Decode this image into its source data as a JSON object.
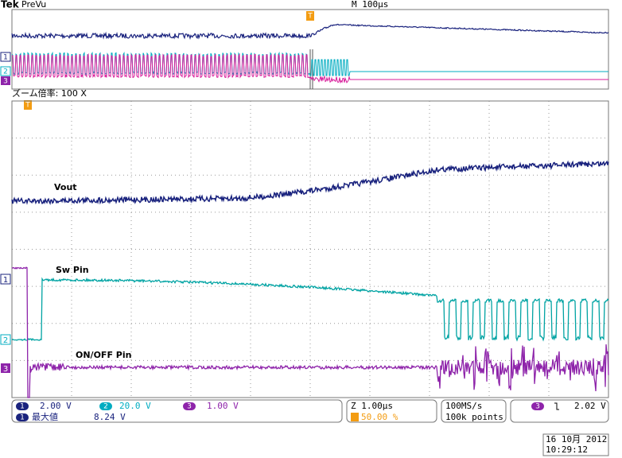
{
  "header": {
    "brand": "Tek",
    "mode": "PreVu",
    "timebase": "M 100µs",
    "trigger_mark": "T"
  },
  "zoom": {
    "label": "ズーム倍率: 100 X"
  },
  "channels": [
    {
      "marker": "1",
      "label": "Vout"
    },
    {
      "marker": "2",
      "label": "Sw Pin"
    },
    {
      "marker": "3",
      "label": "ON/OFF Pin"
    }
  ],
  "readout": {
    "ch1": "2.00 V",
    "ch2": "20.0 V",
    "ch3": "1.00 V",
    "measure_name": "最大値",
    "measure_value": "8.24 V",
    "zoom_time": "Z 1.00µs",
    "trigger_position": "50.00 %",
    "sample_rate": "100MS/s",
    "record_length": "100k points",
    "trigger_level": "2.02 V"
  },
  "timestamp": {
    "date": "16 10月 2012",
    "time": "10:29:12"
  }
}
